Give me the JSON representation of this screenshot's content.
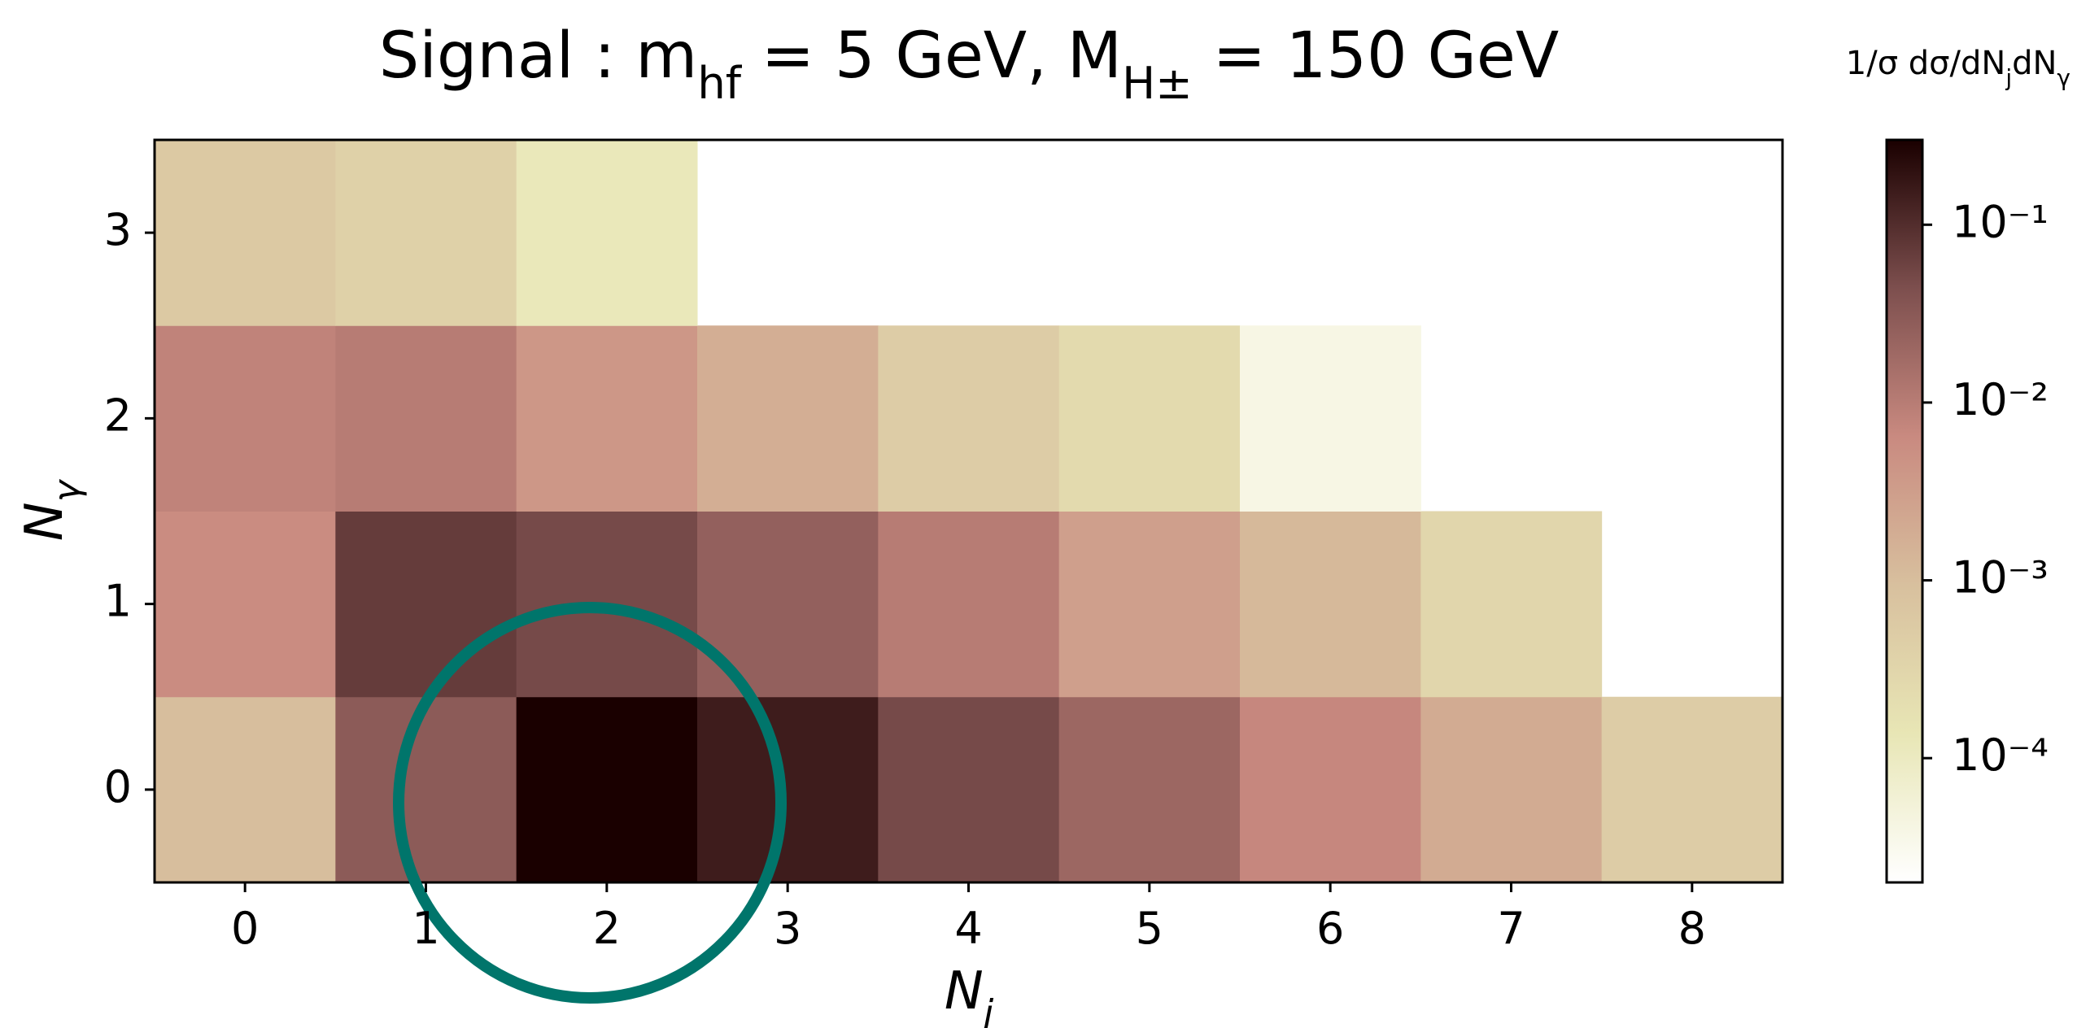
{
  "chart_data": {
    "type": "heatmap",
    "title": "Signal : m_{hf} = 5 GeV,  M_{H±} = 150 GeV",
    "x_label": "N_{j}",
    "y_label": "N_{γ}",
    "colorbar_label": "1/σ dσ/dN_{j}dN_{γ}",
    "x": [
      0,
      1,
      2,
      3,
      4,
      5,
      6,
      7,
      8
    ],
    "y": [
      0,
      1,
      2,
      3
    ],
    "values": [
      [
        0.001,
        0.03,
        0.3,
        0.15,
        0.05,
        0.02,
        0.007,
        0.002,
        0.0005
      ],
      [
        0.006,
        0.07,
        0.05,
        0.025,
        0.01,
        0.003,
        0.0012,
        0.0003,
        null
      ],
      [
        0.008,
        0.01,
        0.004,
        0.0018,
        0.0005,
        0.00025,
        4e-05,
        null,
        null
      ],
      [
        0.0006,
        0.0004,
        0.00012,
        null,
        null,
        null,
        null,
        null,
        null
      ]
    ],
    "log_scale": true,
    "zlim": [
      2e-05,
      0.3
    ],
    "zticks": [
      {
        "value": 0.0001,
        "label": "10⁻⁴"
      },
      {
        "value": 0.001,
        "label": "10⁻³"
      },
      {
        "value": 0.01,
        "label": "10⁻²"
      },
      {
        "value": 0.1,
        "label": "10⁻¹"
      }
    ],
    "colorscale": [
      "#ffffff",
      "#e8e6b5",
      "#d8c09e",
      "#c98a80",
      "#7d4f4e",
      "#1a0000"
    ]
  }
}
